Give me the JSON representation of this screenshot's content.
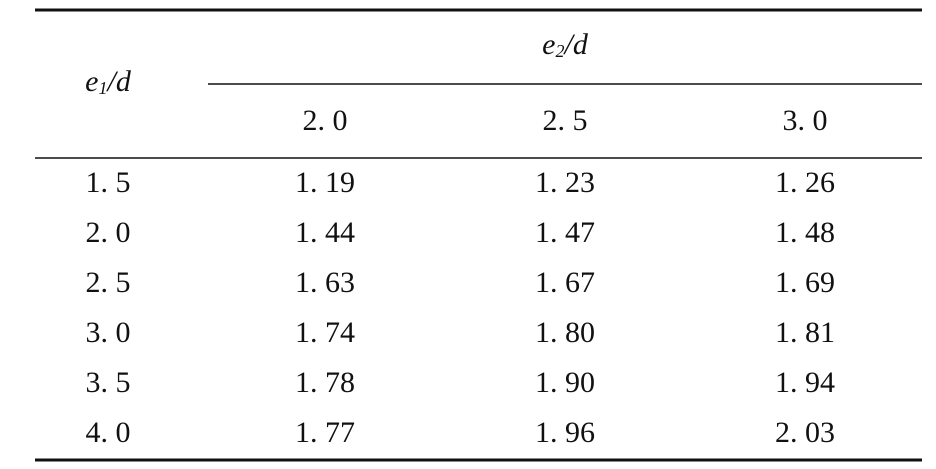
{
  "table": {
    "row_header": {
      "base": "e",
      "sub": "1",
      "tail": "/d"
    },
    "col_group_header": {
      "base": "e",
      "sub": "2",
      "tail": "/d"
    },
    "columns": [
      "2. 0",
      "2. 5",
      "3. 0"
    ],
    "rows": [
      [
        "1. 5",
        "1. 19",
        "1. 23",
        "1. 26"
      ],
      [
        "2. 0",
        "1. 44",
        "1. 47",
        "1. 48"
      ],
      [
        "2. 5",
        "1. 63",
        "1. 67",
        "1. 69"
      ],
      [
        "3. 0",
        "1. 74",
        "1. 80",
        "1. 81"
      ],
      [
        "3. 5",
        "1. 78",
        "1. 90",
        "1. 94"
      ],
      [
        "4. 0",
        "1. 77",
        "1. 96",
        "2. 03"
      ]
    ]
  }
}
